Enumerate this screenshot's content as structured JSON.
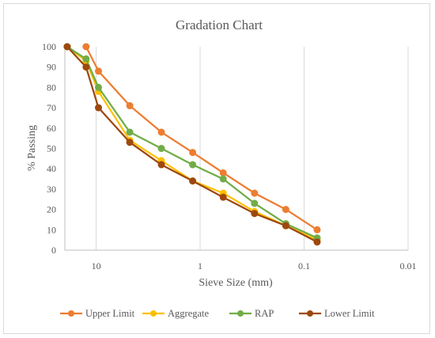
{
  "chart_data": {
    "type": "line",
    "title": "Gradation Chart",
    "xlabel": "Sieve Size (mm)",
    "ylabel": "% Passing",
    "x_scale": "log",
    "x_reversed": true,
    "xlim": [
      20,
      0.01
    ],
    "ylim": [
      0,
      100
    ],
    "x_ticks": [
      10,
      1,
      0.1,
      0.01
    ],
    "x_tick_labels": [
      "10",
      "1",
      "0.1",
      "0.01"
    ],
    "y_ticks": [
      0,
      10,
      20,
      30,
      40,
      50,
      60,
      70,
      80,
      90,
      100
    ],
    "y_tick_labels": [
      "0",
      "10",
      "20",
      "30",
      "40",
      "50",
      "60",
      "70",
      "80",
      "90",
      "100"
    ],
    "grid": "vertical major",
    "legend_position": "bottom",
    "series": [
      {
        "name": "Upper Limit",
        "color": "#ed7d31",
        "points": [
          [
            12.5,
            100
          ],
          [
            9.5,
            88
          ],
          [
            4.75,
            71
          ],
          [
            2.36,
            58
          ],
          [
            1.18,
            48
          ],
          [
            0.6,
            38
          ],
          [
            0.3,
            28
          ],
          [
            0.15,
            20
          ],
          [
            0.075,
            10
          ]
        ]
      },
      {
        "name": "Aggregate",
        "color": "#ffc000",
        "points": [
          [
            19,
            100
          ],
          [
            12.5,
            93
          ],
          [
            9.5,
            78
          ],
          [
            4.75,
            54
          ],
          [
            2.36,
            44
          ],
          [
            1.18,
            34
          ],
          [
            0.6,
            28
          ],
          [
            0.3,
            19
          ],
          [
            0.15,
            12
          ],
          [
            0.075,
            5
          ]
        ]
      },
      {
        "name": "RAP",
        "color": "#70ad47",
        "points": [
          [
            19,
            100
          ],
          [
            12.5,
            94
          ],
          [
            9.5,
            80
          ],
          [
            4.75,
            58
          ],
          [
            2.36,
            50
          ],
          [
            1.18,
            42
          ],
          [
            0.6,
            35
          ],
          [
            0.3,
            23
          ],
          [
            0.15,
            13
          ],
          [
            0.075,
            6
          ]
        ]
      },
      {
        "name": "Lower Limit",
        "color": "#9e480e",
        "points": [
          [
            19,
            100
          ],
          [
            12.5,
            90
          ],
          [
            9.5,
            70
          ],
          [
            4.75,
            53
          ],
          [
            2.36,
            42
          ],
          [
            1.18,
            34
          ],
          [
            0.6,
            26
          ],
          [
            0.3,
            18
          ],
          [
            0.15,
            12
          ],
          [
            0.075,
            4
          ]
        ]
      }
    ]
  }
}
